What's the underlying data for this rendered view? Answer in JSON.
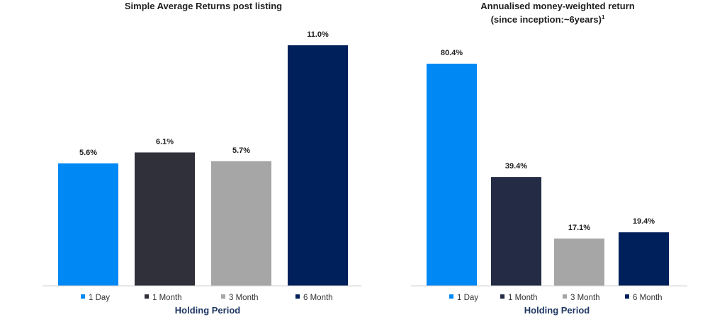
{
  "chart_data": [
    {
      "type": "bar",
      "title": "Simple Average Returns post listing",
      "xlabel": "Holding Period",
      "ylabel": "",
      "ylim": [
        0,
        12
      ],
      "categories": [
        "1 Day",
        "1 Month",
        "3 Month",
        "6 Month"
      ],
      "values": [
        5.6,
        6.1,
        5.7,
        11.0
      ],
      "data_labels": [
        "5.6%",
        "6.1%",
        "5.7%",
        "11.0%"
      ],
      "colors": [
        "#0088f5",
        "#30303a",
        "#a6a6a6",
        "#00205b"
      ],
      "legend": "bottom",
      "grid": false
    },
    {
      "type": "bar",
      "title": "Annualised money-weighted return",
      "subtitle": "(since inception:~6years)",
      "subtitle_sup": "1",
      "xlabel": "Holding Period",
      "ylabel": "",
      "ylim": [
        0,
        90
      ],
      "categories": [
        "1 Day",
        "1 Month",
        "3 Month",
        "6 Month"
      ],
      "values": [
        80.4,
        39.4,
        17.1,
        19.4
      ],
      "data_labels": [
        "80.4%",
        "39.4%",
        "17.1%",
        "19.4%"
      ],
      "colors": [
        "#0088f5",
        "#232c44",
        "#a6a6a6",
        "#00205b"
      ],
      "legend": "bottom",
      "grid": false
    }
  ]
}
